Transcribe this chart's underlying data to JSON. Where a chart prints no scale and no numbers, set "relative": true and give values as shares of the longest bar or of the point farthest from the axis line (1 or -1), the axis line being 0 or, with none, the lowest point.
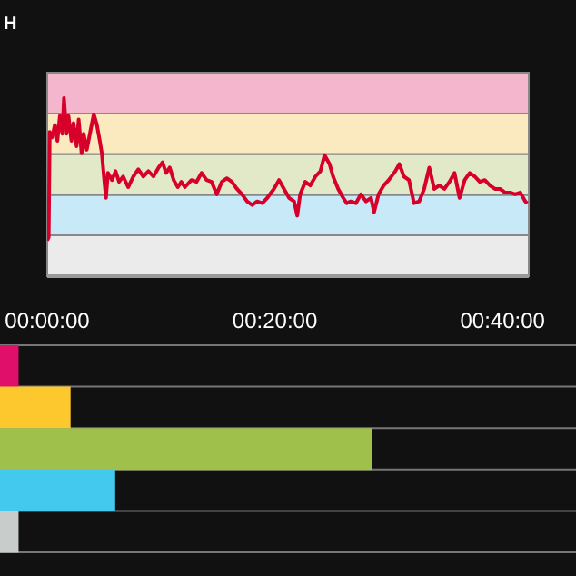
{
  "chart_data": [
    {
      "type": "line",
      "title": "H",
      "relative": true,
      "grid": false,
      "legend": false,
      "marker": "none",
      "line_style": "solid",
      "xlim": [
        0,
        42.3
      ],
      "xticks": [
        {
          "value": 0,
          "label": "00:00:00"
        },
        {
          "value": 20,
          "label": "00:20:00"
        },
        {
          "value": 40,
          "label": "00:40:00"
        }
      ],
      "bands": [
        {
          "axis": "y",
          "from": 0,
          "to": 0.229,
          "color": "#ebebeb"
        },
        {
          "axis": "y",
          "from": 0.229,
          "to": 0.457,
          "color": "#c8eaf8"
        },
        {
          "axis": "y",
          "from": 0.457,
          "to": 0.686,
          "color": "#e2e9c8"
        },
        {
          "axis": "y",
          "from": 0.686,
          "to": 0.914,
          "color": "#fbeac0"
        },
        {
          "axis": "y",
          "from": 0.914,
          "to": 1.143,
          "color": "#f4b6cc"
        }
      ],
      "series": [
        {
          "color": "#d6002a",
          "x": [
            0,
            0.13,
            0.22,
            0.44,
            0.67,
            0.89,
            1.11,
            1.33,
            1.47,
            1.69,
            1.87,
            2.13,
            2.31,
            2.58,
            2.76,
            3.02,
            3.2,
            3.47,
            3.78,
            4.09,
            4.36,
            4.62,
            4.8,
            4.98,
            5.16,
            5.33,
            5.69,
            6,
            6.31,
            6.67,
            7.11,
            7.56,
            8,
            8.44,
            8.89,
            9.33,
            9.78,
            10.13,
            10.44,
            10.76,
            11.11,
            11.47,
            11.78,
            12.09,
            12.67,
            13.11,
            13.56,
            14,
            14.44,
            14.89,
            15.33,
            15.78,
            16.22,
            16.67,
            17.11,
            17.56,
            18,
            18.44,
            18.89,
            19.33,
            19.91,
            20.36,
            20.8,
            21.24,
            21.69,
            21.96,
            22.22,
            22.67,
            23.11,
            23.56,
            24,
            24.36,
            24.8,
            25.11,
            25.56,
            26,
            26.31,
            26.67,
            27.11,
            27.56,
            28,
            28.44,
            28.71,
            29.11,
            29.56,
            30,
            30.58,
            30.93,
            31.33,
            31.78,
            32.22,
            32.67,
            33.11,
            33.56,
            34,
            34.44,
            34.89,
            35.33,
            35.78,
            36.22,
            36.67,
            37.11,
            37.56,
            38,
            38.44,
            38.89,
            39.33,
            39.78,
            40.22,
            40.67,
            41.11,
            41.56,
            42,
            42.18
          ],
          "values": [
            0.2,
            0.22,
            0.81,
            0.78,
            0.85,
            0.76,
            0.9,
            0.8,
            1.0,
            0.8,
            0.9,
            0.76,
            0.86,
            0.73,
            0.88,
            0.69,
            0.8,
            0.71,
            0.81,
            0.91,
            0.85,
            0.76,
            0.69,
            0.56,
            0.44,
            0.58,
            0.54,
            0.59,
            0.53,
            0.56,
            0.5,
            0.56,
            0.6,
            0.56,
            0.59,
            0.56,
            0.61,
            0.64,
            0.58,
            0.61,
            0.54,
            0.5,
            0.53,
            0.5,
            0.54,
            0.53,
            0.58,
            0.54,
            0.53,
            0.46,
            0.53,
            0.55,
            0.53,
            0.49,
            0.46,
            0.42,
            0.4,
            0.42,
            0.41,
            0.44,
            0.49,
            0.54,
            0.49,
            0.44,
            0.42,
            0.34,
            0.46,
            0.53,
            0.51,
            0.56,
            0.59,
            0.68,
            0.63,
            0.56,
            0.49,
            0.44,
            0.41,
            0.42,
            0.41,
            0.46,
            0.42,
            0.44,
            0.36,
            0.46,
            0.51,
            0.54,
            0.59,
            0.63,
            0.56,
            0.54,
            0.41,
            0.42,
            0.49,
            0.61,
            0.49,
            0.51,
            0.49,
            0.53,
            0.58,
            0.44,
            0.54,
            0.58,
            0.56,
            0.53,
            0.54,
            0.51,
            0.49,
            0.49,
            0.47,
            0.47,
            0.46,
            0.47,
            0.42,
            0.41
          ]
        }
      ]
    },
    {
      "type": "bar",
      "orientation": "horizontal",
      "relative": true,
      "legend": false,
      "grid": "y",
      "categories": [
        null,
        null,
        null,
        null,
        null
      ],
      "values": [
        0.05,
        0.19,
        1.0,
        0.31,
        0.05
      ],
      "colors": [
        "#e0106a",
        "#fdc82e",
        "#a0c04c",
        "#43c8ee",
        "#c8cccb"
      ]
    }
  ]
}
